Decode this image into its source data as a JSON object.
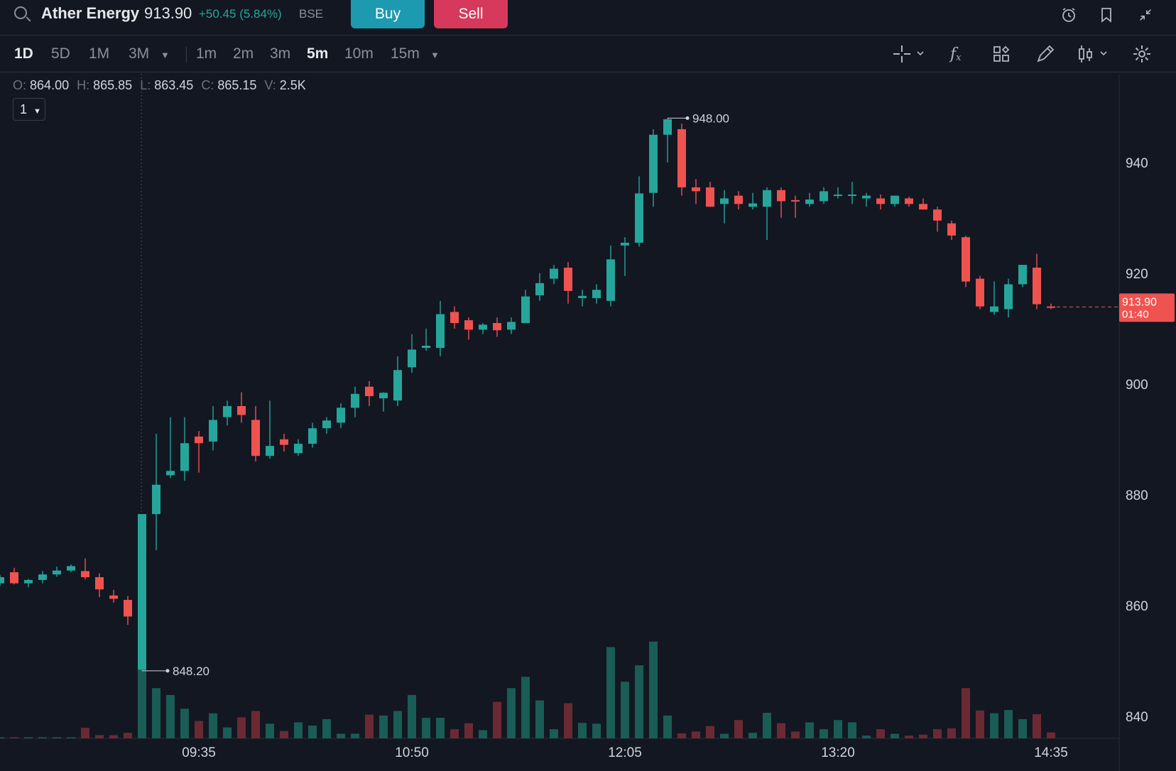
{
  "header": {
    "stock_name": "Ather Energy",
    "price": "913.90",
    "change": "+50.45 (5.84%)",
    "exchange": "BSE",
    "buy_label": "Buy",
    "sell_label": "Sell",
    "icons": [
      "alarm-clock-icon",
      "bookmark-icon",
      "collapse-icon"
    ]
  },
  "toolbar": {
    "ranges": [
      "1D",
      "5D",
      "1M",
      "3M"
    ],
    "intervals": [
      "1m",
      "2m",
      "3m",
      "5m",
      "10m",
      "15m"
    ],
    "active_range": "1D",
    "active_interval": "5m",
    "tools": [
      "crosshair-icon",
      "formula-icon",
      "layout-grid-icon",
      "draw-pencil-icon",
      "candle-type-icon",
      "settings-gear-icon"
    ]
  },
  "ohlc": {
    "o_label": "O:",
    "o": "864.00",
    "h_label": "H:",
    "h": "865.85",
    "l_label": "L:",
    "l": "863.45",
    "c_label": "C:",
    "c": "865.15",
    "v_label": "V:",
    "v": "2.5K"
  },
  "interval_select": "1",
  "chart_data": {
    "type": "candlestick",
    "ylim": [
      836,
      956
    ],
    "y_ticks": [
      "940",
      "920",
      "900",
      "880",
      "860",
      "840"
    ],
    "y_tick_values": [
      940,
      920,
      900,
      880,
      860,
      840
    ],
    "x_ticks": [
      "09:35",
      "10:50",
      "12:05",
      "13:20",
      "14:35"
    ],
    "x_tick_indices": [
      14,
      29,
      44,
      59,
      74
    ],
    "last_price_label": "913.90",
    "last_price_timer": "01:40",
    "last_price": 913.9,
    "high_label": "948.00",
    "high_index": 47,
    "high_value": 948,
    "low_label": "848.20",
    "low_index": 10,
    "low_value": 848.2,
    "colors": {
      "up": "#26a69a",
      "down": "#ef5350",
      "vol_up": "#1a5c56",
      "vol_down": "#6b2a33"
    },
    "candles": [
      [
        864.0,
        865.5,
        863.5,
        865.1
      ],
      [
        866.0,
        866.8,
        863.8,
        864.0
      ],
      [
        864.0,
        864.8,
        863.3,
        864.6
      ],
      [
        864.6,
        866.2,
        864.0,
        865.6
      ],
      [
        865.6,
        867.0,
        865.2,
        866.3
      ],
      [
        866.3,
        867.4,
        866.0,
        867.1
      ],
      [
        866.2,
        868.5,
        864.7,
        865.1
      ],
      [
        865.1,
        865.8,
        861.5,
        862.9
      ],
      [
        861.8,
        862.8,
        860.5,
        861.2
      ],
      [
        861.0,
        861.7,
        856.5,
        858.0
      ],
      [
        848.4,
        876.5,
        848.2,
        876.5
      ],
      [
        876.5,
        891.0,
        870.0,
        881.8
      ],
      [
        883.5,
        894.0,
        883.0,
        884.3
      ],
      [
        884.3,
        894.0,
        882.5,
        889.3
      ],
      [
        890.5,
        891.5,
        884.0,
        889.3
      ],
      [
        889.6,
        896.0,
        888.0,
        893.5
      ],
      [
        894.0,
        897.0,
        892.5,
        896.0
      ],
      [
        896.0,
        898.5,
        893.0,
        894.4
      ],
      [
        893.5,
        896.0,
        886.0,
        887.0
      ],
      [
        887.0,
        897.0,
        886.5,
        888.8
      ],
      [
        890.0,
        891.0,
        887.8,
        889.0
      ],
      [
        887.5,
        890.0,
        887.0,
        889.2
      ],
      [
        889.2,
        893.0,
        888.5,
        892.0
      ],
      [
        892.0,
        894.0,
        891.0,
        893.4
      ],
      [
        893.0,
        896.5,
        892.0,
        895.7
      ],
      [
        895.7,
        899.5,
        894.0,
        898.2
      ],
      [
        899.5,
        900.5,
        896.0,
        897.8
      ],
      [
        897.4,
        898.5,
        895.0,
        898.4
      ],
      [
        897.0,
        905.0,
        896.0,
        902.5
      ],
      [
        903.0,
        909.0,
        902.0,
        906.2
      ],
      [
        906.5,
        910.0,
        906.0,
        906.9
      ],
      [
        906.5,
        915.0,
        905.0,
        912.6
      ],
      [
        913.0,
        914.0,
        910.0,
        911.0
      ],
      [
        911.5,
        912.0,
        908.0,
        909.8
      ],
      [
        909.8,
        911.0,
        909.0,
        910.7
      ],
      [
        911.0,
        912.0,
        908.5,
        909.7
      ],
      [
        909.8,
        912.0,
        909.0,
        911.2
      ],
      [
        911.0,
        917.0,
        911.0,
        915.8
      ],
      [
        916.0,
        920.0,
        915.0,
        918.2
      ],
      [
        919.0,
        921.5,
        918.0,
        920.8
      ],
      [
        921.0,
        922.0,
        914.5,
        916.8
      ],
      [
        915.5,
        917.0,
        914.0,
        915.9
      ],
      [
        915.5,
        918.0,
        914.5,
        917.0
      ],
      [
        915.0,
        925.0,
        914.0,
        922.5
      ],
      [
        925.0,
        926.5,
        919.5,
        925.5
      ],
      [
        925.5,
        937.5,
        924.8,
        934.4
      ],
      [
        934.5,
        946.0,
        932.0,
        945.0
      ],
      [
        945.0,
        948.0,
        940.0,
        947.8
      ],
      [
        946.0,
        947.0,
        934.0,
        935.5
      ],
      [
        935.5,
        937.0,
        932.5,
        934.8
      ],
      [
        935.5,
        936.5,
        932.0,
        932.0
      ],
      [
        932.5,
        935.0,
        929.0,
        933.5
      ],
      [
        934.0,
        934.8,
        931.5,
        932.5
      ],
      [
        932.0,
        934.5,
        931.5,
        932.6
      ],
      [
        932.0,
        935.5,
        926.0,
        935.0
      ],
      [
        935.0,
        935.5,
        930.0,
        933.0
      ],
      [
        933.2,
        934.0,
        930.0,
        933.1
      ],
      [
        932.5,
        934.5,
        932.0,
        933.3
      ],
      [
        933.0,
        935.5,
        932.5,
        934.8
      ],
      [
        934.0,
        935.5,
        933.5,
        934.2
      ],
      [
        934.0,
        936.5,
        932.5,
        934.2
      ],
      [
        933.5,
        934.5,
        932.0,
        934.0
      ],
      [
        933.5,
        934.2,
        931.5,
        932.5
      ],
      [
        932.5,
        934.0,
        932.0,
        934.0
      ],
      [
        933.5,
        933.8,
        932.0,
        932.5
      ],
      [
        932.5,
        933.5,
        931.5,
        931.5
      ],
      [
        931.5,
        932.0,
        927.5,
        929.5
      ],
      [
        929.0,
        929.5,
        926.0,
        926.8
      ],
      [
        926.5,
        926.8,
        917.5,
        918.5
      ],
      [
        919.0,
        919.5,
        913.5,
        914.0
      ],
      [
        913.0,
        918.5,
        912.5,
        914.0
      ],
      [
        913.5,
        919.0,
        912.0,
        918.0
      ],
      [
        918.0,
        920.5,
        917.5,
        921.5
      ],
      [
        921.0,
        923.5,
        913.5,
        914.4
      ],
      [
        914.0,
        914.5,
        913.5,
        913.9
      ]
    ],
    "volumes": [
      0.2,
      0.2,
      0.2,
      0.2,
      0.2,
      0.2,
      2.3,
      0.7,
      0.7,
      1.2,
      42.0,
      11.0,
      9.5,
      6.5,
      3.8,
      5.5,
      2.4,
      4.6,
      6.0,
      3.2,
      1.6,
      3.5,
      2.8,
      4.2,
      1.0,
      1.0,
      5.2,
      5.0,
      6.0,
      9.5,
      4.5,
      4.5,
      2.0,
      3.3,
      1.8,
      8.0,
      11.0,
      13.5,
      8.3,
      2.0,
      7.7,
      3.4,
      3.2,
      20.0,
      12.4,
      16.0,
      21.2,
      5.0,
      1.1,
      1.5,
      2.7,
      1.0,
      4.0,
      1.2,
      5.6,
      3.3,
      1.5,
      3.5,
      2.0,
      4.0,
      3.5,
      0.6,
      2.0,
      1.0,
      0.6,
      0.8,
      2.0,
      2.2,
      11.0,
      6.1,
      5.5,
      6.2,
      4.2,
      5.3,
      1.3
    ]
  }
}
